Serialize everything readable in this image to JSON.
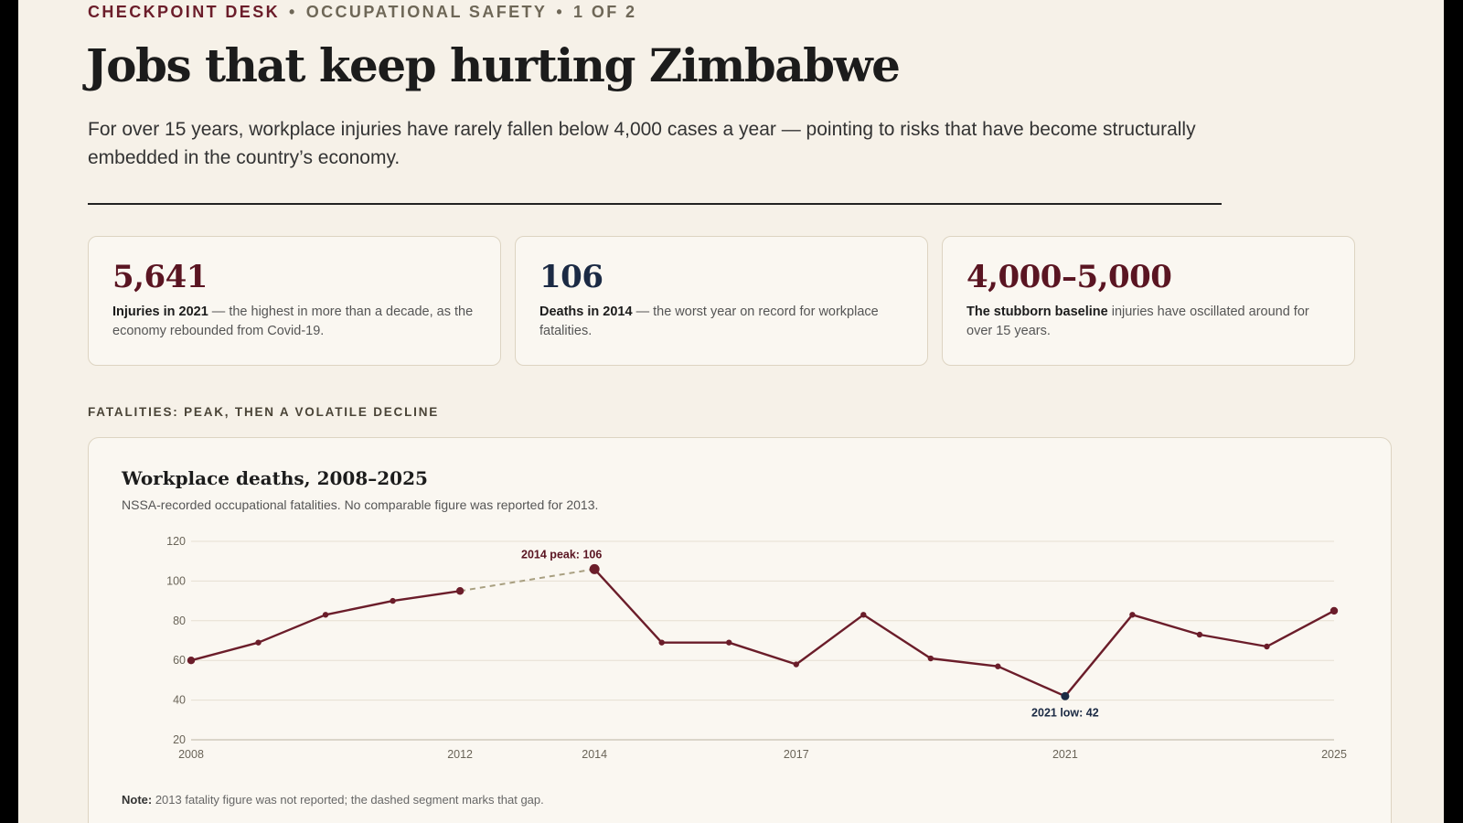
{
  "header": {
    "kicker_desk": "CHECKPOINT DESK",
    "kicker_section": "OCCUPATIONAL SAFETY",
    "kicker_page": "1 OF 2",
    "title": "Jobs that keep hurting Zimbabwe",
    "dek": "For over 15 years, workplace injuries have rarely fallen below 4,000 cases a year — pointing to risks that have become structurally embedded in the country’s economy."
  },
  "stats": [
    {
      "value": "5,641",
      "label": "Injuries in 2021",
      "text": " — the highest in more than a decade, as the economy rebounded from Covid-19.",
      "color": "#5a1522"
    },
    {
      "value": "106",
      "label": "Deaths in 2014",
      "text": " — the worst year on record for workplace fatalities.",
      "color": "#1b2a44"
    },
    {
      "value": "4,000–5,000",
      "label": "The stubborn baseline",
      "text": " injuries have oscillated around for over 15 years.",
      "color": "#5a1522"
    }
  ],
  "section_label": "FATALITIES: PEAK, THEN A VOLATILE DECLINE",
  "chart_data": {
    "type": "line",
    "title": "Workplace deaths, 2008–2025",
    "subtitle": "NSSA-recorded occupational fatalities. No comparable figure was reported for 2013.",
    "note_label": "Note:",
    "note_text": " 2013 fatality figure was not reported; the dashed segment marks that gap.",
    "x_ticks": [
      "2008",
      "2012",
      "2014",
      "2017",
      "2021",
      "2025"
    ],
    "y_ticks": [
      20,
      40,
      60,
      80,
      100,
      120
    ],
    "xlim": [
      2008,
      2025
    ],
    "ylim": [
      20,
      120
    ],
    "grid": true,
    "series": [
      {
        "x": [
          2008,
          2009,
          2010,
          2011,
          2012,
          2014,
          2015,
          2016,
          2017,
          2018,
          2019,
          2020,
          2021,
          2022,
          2023,
          2024,
          2025
        ],
        "values": [
          60,
          69,
          83,
          90,
          95,
          106,
          69,
          69,
          58,
          83,
          61,
          57,
          42,
          83,
          73,
          67,
          85
        ],
        "color": "#6b1d2a"
      }
    ],
    "gap": {
      "from": 2012,
      "to": 2014,
      "color": "#a89f80"
    },
    "annotations": [
      {
        "x": 2014,
        "y": 106,
        "text": "2014 peak: 106",
        "color": "#5a1522"
      },
      {
        "x": 2021,
        "y": 42,
        "text": "2021 low: 42",
        "color": "#1b2a44"
      }
    ],
    "colors": {
      "line": "#6b1d2a",
      "low_point": "#1b2a44",
      "grid": "#e6dfd2",
      "axis": "#bbb3a3",
      "tick_text": "#6a6458"
    }
  }
}
